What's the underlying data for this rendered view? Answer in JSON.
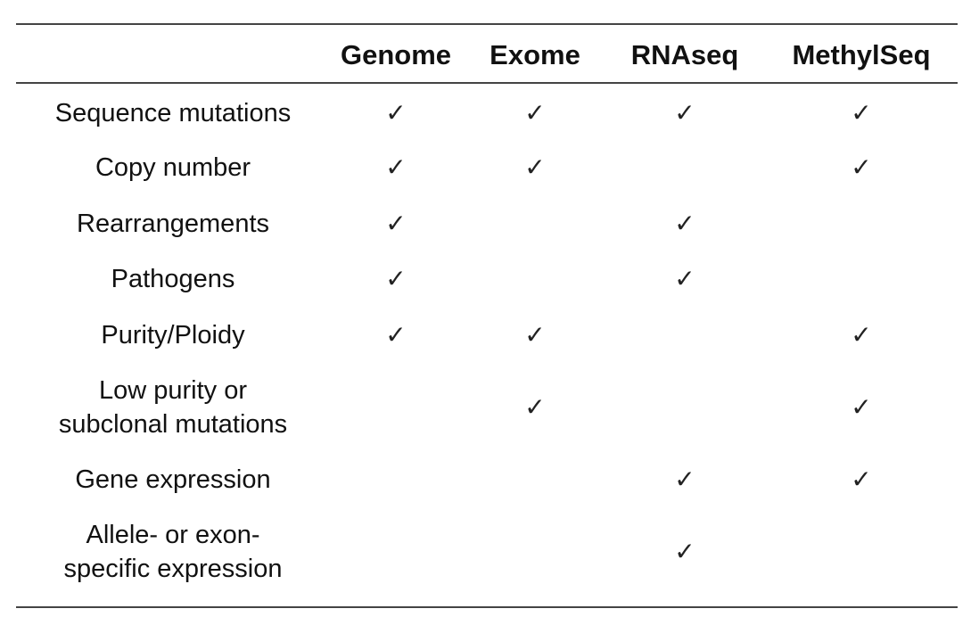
{
  "table": {
    "columns": [
      "Genome",
      "Exome",
      "RNAseq",
      "MethylSeq"
    ],
    "check_glyph": "✓",
    "rows": [
      {
        "label_lines": [
          "Sequence mutations"
        ],
        "checks": [
          true,
          true,
          true,
          true
        ]
      },
      {
        "label_lines": [
          "Copy number"
        ],
        "checks": [
          true,
          true,
          false,
          true
        ]
      },
      {
        "label_lines": [
          "Rearrangements"
        ],
        "checks": [
          true,
          false,
          true,
          false
        ]
      },
      {
        "label_lines": [
          "Pathogens"
        ],
        "checks": [
          true,
          false,
          true,
          false
        ]
      },
      {
        "label_lines": [
          "Purity/Ploidy"
        ],
        "checks": [
          true,
          true,
          false,
          true
        ]
      },
      {
        "label_lines": [
          "Low purity or",
          "subclonal mutations"
        ],
        "checks": [
          false,
          true,
          false,
          true
        ]
      },
      {
        "label_lines": [
          "Gene expression"
        ],
        "checks": [
          false,
          false,
          true,
          true
        ]
      },
      {
        "label_lines": [
          "Allele- or exon-",
          "specific expression"
        ],
        "checks": [
          false,
          false,
          true,
          false
        ]
      }
    ]
  }
}
